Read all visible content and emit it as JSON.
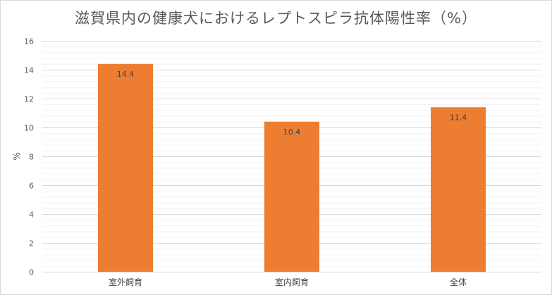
{
  "chart_data": {
    "type": "bar",
    "title": "滋賀県内の健康犬におけるレプトスピラ抗体陽性率（%）",
    "xlabel": "",
    "ylabel": "%",
    "categories": [
      "室外飼育",
      "室内飼育",
      "全体"
    ],
    "values": [
      14.4,
      10.4,
      11.4
    ],
    "data_labels": [
      "14.4",
      "10.4",
      "11.4"
    ],
    "ylim": [
      0,
      16
    ],
    "yticks": [
      0,
      2,
      4,
      6,
      8,
      10,
      12,
      14,
      16
    ],
    "grid": true,
    "minor_grid": true,
    "legend": "none",
    "bar_color": "#ED7D31"
  }
}
